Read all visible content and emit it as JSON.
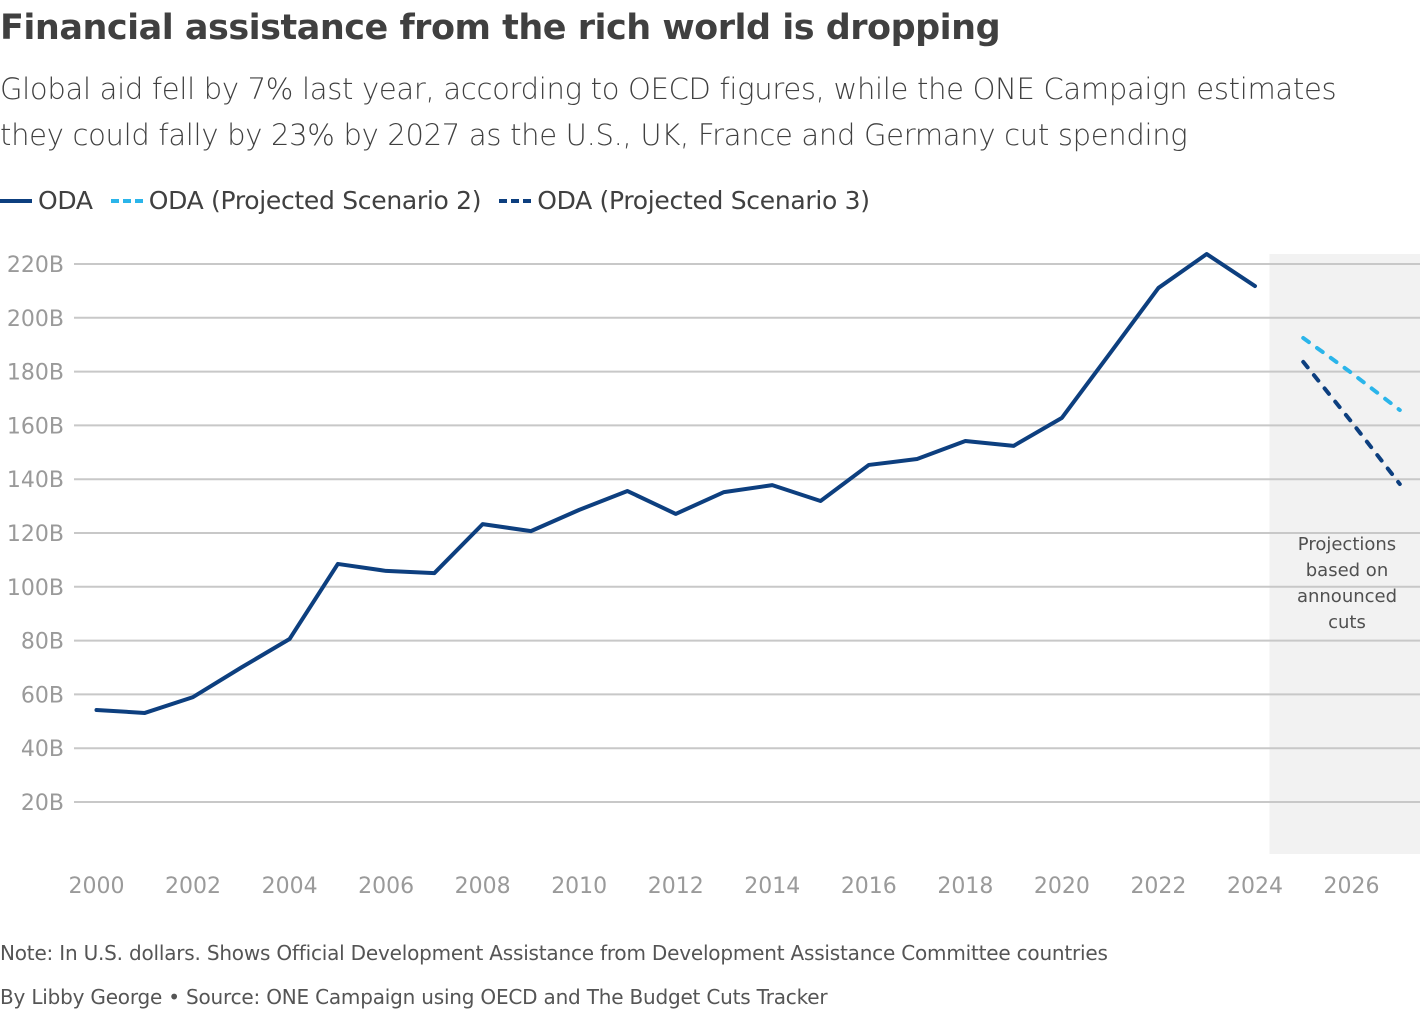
{
  "title": "Financial assistance from the rich world is dropping",
  "subtitle": "Global aid fell by 7% last year, according to OECD figures, while the ONE Campaign estimates they could fally by 23% by 2027 as the U.S., UK, France and Germany cut spending",
  "note": "Note: In U.S. dollars. Shows Official Development Assistance from Development Assistance Committee countries",
  "byline": "By Libby George • Source: ONE Campaign using OECD and The Budget Cuts Tracker",
  "chart_data": {
    "type": "line",
    "title": "Financial assistance from the rich world is dropping",
    "xlabel": "",
    "ylabel": "",
    "xlim": [
      2000,
      2027
    ],
    "ylim": [
      0,
      220
    ],
    "grid": true,
    "legend_position": "top-left",
    "x_ticks": [
      2000,
      2002,
      2004,
      2006,
      2008,
      2010,
      2012,
      2014,
      2016,
      2018,
      2020,
      2022,
      2024,
      2026
    ],
    "y_ticks": [
      20,
      40,
      60,
      80,
      100,
      120,
      140,
      160,
      180,
      200,
      220
    ],
    "y_tick_labels": [
      "20B",
      "40B",
      "60B",
      "80B",
      "100B",
      "120B",
      "140B",
      "160B",
      "180B",
      "200B",
      "220B"
    ],
    "shaded_region": {
      "from": 2024.3,
      "label": "Projections based on announced cuts",
      "color": "#f2f2f2"
    },
    "series": [
      {
        "name": "ODA",
        "color": "#0d3f7f",
        "style": "solid",
        "x": [
          2000,
          2001,
          2002,
          2003,
          2004,
          2005,
          2006,
          2007,
          2008,
          2009,
          2010,
          2011,
          2012,
          2013,
          2014,
          2015,
          2016,
          2017,
          2018,
          2019,
          2020,
          2021,
          2022,
          2023,
          2024
        ],
        "y": [
          54.2,
          53.1,
          59.0,
          70.0,
          80.6,
          108.5,
          105.9,
          105.1,
          123.3,
          120.7,
          128.6,
          135.6,
          127.1,
          135.2,
          137.8,
          131.9,
          145.3,
          147.5,
          154.2,
          152.4,
          162.8,
          186.9,
          211.1,
          223.7,
          211.8
        ]
      },
      {
        "name": "ODA (Projected Scenario 2)",
        "color": "#2bb5ea",
        "style": "dashed",
        "x": [
          2025,
          2026,
          2027
        ],
        "y": [
          192.5,
          179.5,
          165.7
        ]
      },
      {
        "name": "ODA (Projected Scenario 3)",
        "color": "#0d3f7f",
        "style": "dashed",
        "x": [
          2025,
          2026,
          2027
        ],
        "y": [
          183.6,
          161.3,
          138.2
        ]
      }
    ]
  }
}
